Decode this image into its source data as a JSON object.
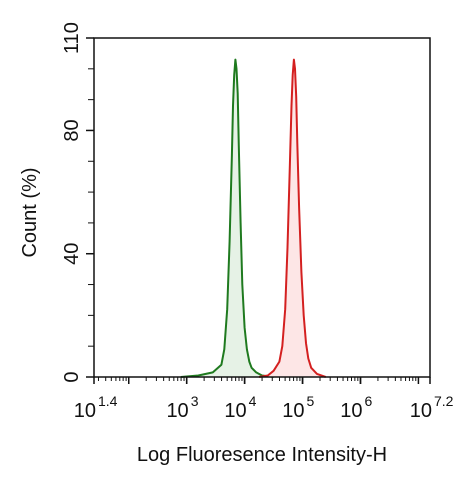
{
  "chart_data": {
    "type": "area",
    "title": "",
    "xlabel": "Log Fluoresence Intensity-H",
    "ylabel": "Count  (%)",
    "x_scale": "log10",
    "xlim": [
      1.4,
      7.2
    ],
    "ylim": [
      0,
      110
    ],
    "x_ticks": [
      {
        "base": "10",
        "exp": "1.4",
        "value": 1.4
      },
      {
        "base": "10",
        "exp": "3",
        "value": 3
      },
      {
        "base": "10",
        "exp": "4",
        "value": 4
      },
      {
        "base": "10",
        "exp": "5",
        "value": 5
      },
      {
        "base": "10",
        "exp": "6",
        "value": 6
      },
      {
        "base": "10",
        "exp": "7.2",
        "value": 7.2
      }
    ],
    "y_ticks": [
      {
        "label": "0",
        "value": 0
      },
      {
        "label": "40",
        "value": 40
      },
      {
        "label": "80",
        "value": 80
      },
      {
        "label": "110",
        "value": 110
      }
    ],
    "grid": false,
    "legend": "none",
    "series": [
      {
        "color": "#1f7a1f",
        "fill": "#e6f2e6",
        "x": [
          2.9,
          3.2,
          3.45,
          3.6,
          3.65,
          3.7,
          3.74,
          3.78,
          3.8,
          3.82,
          3.84,
          3.86,
          3.88,
          3.9,
          3.93,
          3.96,
          4.0,
          4.04,
          4.08,
          4.12,
          4.2,
          4.3,
          4.5
        ],
        "y": [
          0,
          0.5,
          1.5,
          4,
          9,
          22,
          44,
          72,
          88,
          98,
          103,
          100,
          92,
          75,
          50,
          30,
          16,
          9,
          5,
          3,
          1.5,
          0.5,
          0
        ]
      },
      {
        "color": "#d42020",
        "fill": "#fde6e6",
        "x": [
          4.25,
          4.4,
          4.5,
          4.6,
          4.65,
          4.7,
          4.74,
          4.78,
          4.81,
          4.83,
          4.85,
          4.87,
          4.89,
          4.91,
          4.94,
          4.98,
          5.02,
          5.06,
          5.1,
          5.15,
          5.25,
          5.4
        ],
        "y": [
          0,
          0.5,
          2,
          5,
          10,
          22,
          42,
          68,
          88,
          98,
          103,
          100,
          91,
          76,
          55,
          34,
          20,
          11,
          6,
          3,
          1,
          0
        ]
      }
    ]
  }
}
